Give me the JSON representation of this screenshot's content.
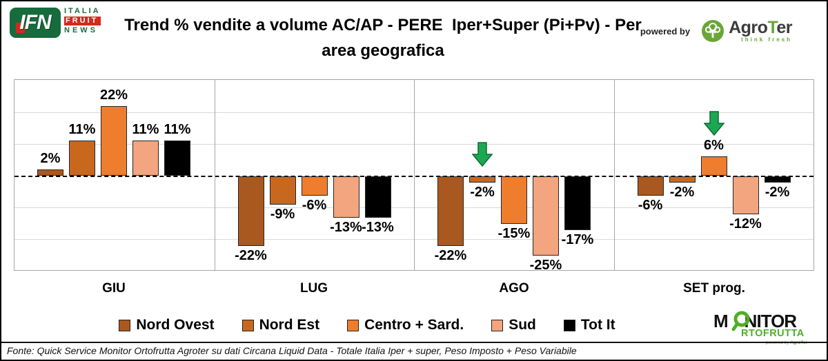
{
  "header": {
    "title_line1": "Trend % vendite a volume AC/AP - PERE  Iper+Super (Pi+Pv) - Per",
    "title_line2": "area geografica",
    "powered_by": "powered by"
  },
  "logos": {
    "ifn": {
      "text": "IFN",
      "line1": "ITALIA",
      "line2": "FRUIT",
      "line3": "NEWS"
    },
    "agroter": {
      "name_pre": "Agro",
      "name_t": "T",
      "name_post": "er",
      "tagline": "think fresh"
    },
    "monitor": {
      "m": "M",
      "nitor": "NITOR",
      "line2": "RTOFRUTTA",
      "powered_pre": "powered by ",
      "powered_brand": "AgroTer"
    }
  },
  "chart_data": {
    "type": "bar",
    "title": "Trend % vendite a volume AC/AP - PERE Iper+Super (Pi+Pv) - Per area geografica",
    "categories": [
      "GIU",
      "LUG",
      "AGO",
      "SET prog."
    ],
    "series": [
      {
        "name": "Nord Ovest",
        "color": "#A9581F",
        "values": [
          2,
          -22,
          -22,
          -6
        ]
      },
      {
        "name": "Nord Est",
        "color": "#C8681F",
        "values": [
          11,
          -9,
          -2,
          -2
        ]
      },
      {
        "name": "Centro + Sard.",
        "color": "#EE7D2E",
        "values": [
          22,
          -6,
          -15,
          6
        ]
      },
      {
        "name": "Sud",
        "color": "#F2A57E",
        "values": [
          11,
          -13,
          -25,
          -12
        ]
      },
      {
        "name": "Tot It",
        "color": "#000000",
        "values": [
          11,
          -13,
          -17,
          -2
        ]
      }
    ],
    "ylim": [
      -30,
      30
    ],
    "gridline_step": 10,
    "grid": true,
    "legend_position": "bottom",
    "value_label_suffix": "%",
    "annotations": [
      {
        "type": "down-arrow",
        "category": "AGO",
        "series": "Nord Est",
        "fill": "#1CA853",
        "stroke": "#0B6B31"
      },
      {
        "type": "down-arrow",
        "category": "SET prog.",
        "series": "Centro + Sard.",
        "fill": "#1CA853",
        "stroke": "#0B6B31"
      }
    ]
  },
  "footer": {
    "source": "Fonte: Quick Service Monitor Ortofrutta Agroter su dati Circana Liquid Data - Totale Italia Iper + super, Peso Imposto + Peso Variabile"
  }
}
